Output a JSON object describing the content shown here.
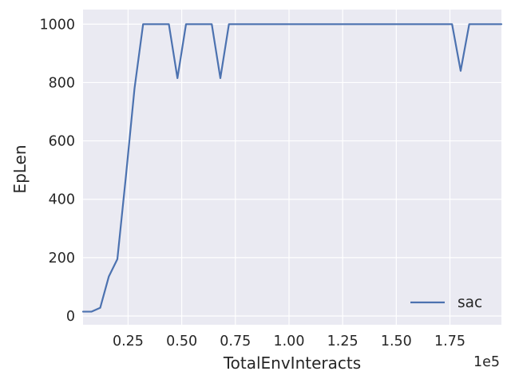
{
  "chart_data": {
    "type": "line",
    "title": "",
    "xlabel": "TotalEnvInteracts",
    "ylabel": "EpLen",
    "x_offset_label": "1e5",
    "xlim": [
      0.04,
      1.99
    ],
    "ylim": [
      -30,
      1050
    ],
    "x_ticks": [
      0.25,
      0.5,
      0.75,
      1.0,
      1.25,
      1.5,
      1.75
    ],
    "x_tick_labels": [
      "0.25",
      "0.50",
      "0.75",
      "1.00",
      "1.25",
      "1.50",
      "1.75"
    ],
    "y_ticks": [
      0,
      200,
      400,
      600,
      800,
      1000
    ],
    "y_tick_labels": [
      "0",
      "200",
      "400",
      "600",
      "800",
      "1000"
    ],
    "grid": true,
    "legend_position": "lower-right",
    "colors": {
      "plot_background": "#eaeaf2",
      "grid": "#ffffff",
      "series": "#4c72b0",
      "text": "#262626"
    },
    "series": [
      {
        "name": "sac",
        "color": "#4c72b0",
        "x": [
          0.04,
          0.08,
          0.12,
          0.16,
          0.2,
          0.24,
          0.28,
          0.32,
          0.36,
          0.4,
          0.44,
          0.48,
          0.52,
          0.56,
          0.6,
          0.64,
          0.68,
          0.72,
          0.76,
          0.8,
          0.84,
          0.88,
          0.92,
          0.96,
          1.0,
          1.04,
          1.08,
          1.12,
          1.16,
          1.2,
          1.24,
          1.28,
          1.32,
          1.36,
          1.4,
          1.44,
          1.48,
          1.52,
          1.56,
          1.6,
          1.64,
          1.68,
          1.72,
          1.76,
          1.8,
          1.84,
          1.88,
          1.92,
          1.96,
          1.99
        ],
        "y": [
          15,
          15,
          28,
          135,
          195,
          480,
          780,
          1000,
          1000,
          1000,
          1000,
          815,
          1000,
          1000,
          1000,
          1000,
          815,
          1000,
          1000,
          1000,
          1000,
          1000,
          1000,
          1000,
          1000,
          1000,
          1000,
          1000,
          1000,
          1000,
          1000,
          1000,
          1000,
          1000,
          1000,
          1000,
          1000,
          1000,
          1000,
          1000,
          1000,
          1000,
          1000,
          1000,
          840,
          1000,
          1000,
          1000,
          1000,
          1000
        ]
      }
    ]
  }
}
